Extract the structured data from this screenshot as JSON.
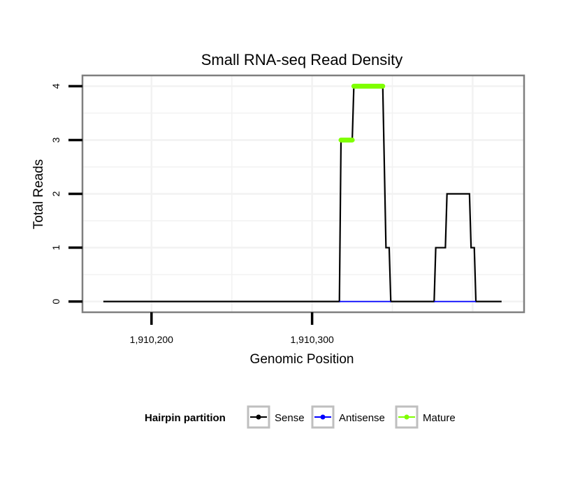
{
  "chart_data": {
    "type": "line",
    "title": "Small RNA-seq Read Density",
    "xlabel": "Genomic Position",
    "ylabel": "Total Reads",
    "xlim": [
      1910157,
      1910432
    ],
    "ylim": [
      -0.2,
      4.2
    ],
    "xticks": [
      1910200,
      1910300
    ],
    "xtick_labels": [
      "1,910,200",
      "1,910,300"
    ],
    "yticks": [
      0,
      1,
      2,
      3,
      4
    ],
    "ytick_labels": [
      "0",
      "1",
      "2",
      "3",
      "4"
    ],
    "grid": true,
    "legend": {
      "title": "Hairpin partition",
      "position": "bottom",
      "entries": [
        "Sense",
        "Antisense",
        "Mature"
      ]
    },
    "series": [
      {
        "name": "Sense",
        "color": "#000000",
        "points": [
          [
            1910170,
            0
          ],
          [
            1910317,
            0
          ],
          [
            1910318,
            3
          ],
          [
            1910325,
            3
          ],
          [
            1910326,
            4
          ],
          [
            1910344,
            4
          ],
          [
            1910346,
            1
          ],
          [
            1910348,
            1
          ],
          [
            1910349,
            0
          ],
          [
            1910376,
            0
          ],
          [
            1910377,
            1
          ],
          [
            1910383,
            1
          ],
          [
            1910384,
            2
          ],
          [
            1910398,
            2
          ],
          [
            1910399,
            1
          ],
          [
            1910401,
            1
          ],
          [
            1910402,
            0
          ],
          [
            1910418,
            0
          ]
        ]
      },
      {
        "name": "Antisense",
        "color": "#0000ff",
        "points": [
          [
            1910317,
            0
          ],
          [
            1910349,
            0
          ],
          [
            1910376,
            0
          ],
          [
            1910402,
            0
          ]
        ]
      },
      {
        "name": "Mature",
        "color": "#7fff00",
        "points": [
          [
            1910318,
            3
          ],
          [
            1910325,
            3
          ],
          [
            1910326,
            4
          ],
          [
            1910344,
            4
          ]
        ]
      }
    ]
  }
}
